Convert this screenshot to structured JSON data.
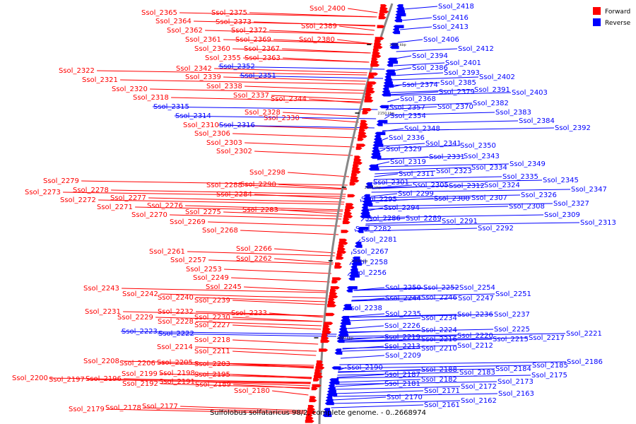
{
  "title": "Sulfolobus solfataricus 98/2, complete genome. - 0..2668974",
  "colors": {
    "forward": "#ff0000",
    "reverse": "#0000ff",
    "axis": "#888888",
    "background": "#ffffff"
  },
  "legend": [
    {
      "label": "Forward",
      "color": "#ff0000"
    },
    {
      "label": "Reverse",
      "color": "#0000ff"
    }
  ],
  "ticks": [
    "2200 kbp",
    "2150 kbp",
    "2100 kbp",
    "2050 kbp",
    "2000 kbp"
  ],
  "forward_labels": [
    "Ssol_2400",
    "Ssol_2389",
    "Ssol_2380",
    "Ssol_2375",
    "Ssol_2373",
    "Ssol_2372",
    "Ssol_2369",
    "Ssol_2367",
    "Ssol_2365",
    "Ssol_2364",
    "Ssol_2363",
    "Ssol_2362",
    "Ssol_2361",
    "Ssol_2360",
    "Ssol_2355",
    "Ssol_2344",
    "Ssol_2342",
    "Ssol_2339",
    "Ssol_2338",
    "Ssol_2337",
    "Ssol_2330",
    "Ssol_2328",
    "Ssol_2322",
    "Ssol_2321",
    "Ssol_2320",
    "Ssol_2318",
    "Ssol_2310",
    "Ssol_2306",
    "Ssol_2303",
    "Ssol_2302",
    "Ssol_2298",
    "Ssol_2290",
    "Ssol_2288",
    "Ssol_2284",
    "Ssol_2283",
    "Ssol_2279",
    "Ssol_2278",
    "Ssol_2277",
    "Ssol_2276",
    "Ssol_2275",
    "Ssol_2273",
    "Ssol_2272",
    "Ssol_2271",
    "Ssol_2270",
    "Ssol_2269",
    "Ssol_2268",
    "Ssol_2266",
    "Ssol_2262",
    "Ssol_2261",
    "Ssol_2257",
    "Ssol_2253",
    "Ssol_2249",
    "Ssol_2245",
    "Ssol_2243",
    "Ssol_2242",
    "Ssol_2240",
    "Ssol_2239",
    "Ssol_2233",
    "Ssol_2232",
    "Ssol_2231",
    "Ssol_2230",
    "Ssol_2229",
    "Ssol_2228",
    "Ssol_2227",
    "Ssol_2218",
    "Ssol_2214",
    "Ssol_2211",
    "Ssol_2208",
    "Ssol_2206",
    "Ssol_2205",
    "Ssol_2203",
    "Ssol_2200",
    "Ssol_2199",
    "Ssol_2198",
    "Ssol_2197",
    "Ssol_2196",
    "Ssol_2195",
    "Ssol_2192",
    "Ssol_2191",
    "Ssol_2189",
    "Ssol_2180",
    "Ssol_2179",
    "Ssol_2178",
    "Ssol_2177"
  ],
  "reverse_labels": [
    "Ssol_2418",
    "Ssol_2416",
    "Ssol_2413",
    "Ssol_2412",
    "Ssol_2406",
    "Ssol_2403",
    "Ssol_2402",
    "Ssol_2401",
    "Ssol_2394",
    "Ssol_2393",
    "Ssol_2392",
    "Ssol_2391",
    "Ssol_2386",
    "Ssol_2385",
    "Ssol_2384",
    "Ssol_2383",
    "Ssol_2382",
    "Ssol_2379",
    "Ssol_2374",
    "Ssol_2370",
    "Ssol_2368",
    "Ssol_2357",
    "Ssol_2354",
    "Ssol_2352",
    "Ssol_2351",
    "Ssol_2350",
    "Ssol_2349",
    "Ssol_2348",
    "Ssol_2347",
    "Ssol_2345",
    "Ssol_2343",
    "Ssol_2341",
    "Ssol_2336",
    "Ssol_2335",
    "Ssol_2334",
    "Ssol_2331",
    "Ssol_2329",
    "Ssol_2327",
    "Ssol_2326",
    "Ssol_2324",
    "Ssol_2323",
    "Ssol_2319",
    "Ssol_2316",
    "Ssol_2315",
    "Ssol_2314",
    "Ssol_2313",
    "Ssol_2312",
    "Ssol_2311",
    "Ssol_2309",
    "Ssol_2308",
    "Ssol_2307",
    "Ssol_2305",
    "Ssol_2301",
    "Ssol_2300",
    "Ssol_2299",
    "Ssol_2295",
    "Ssol_2294",
    "Ssol_2292",
    "Ssol_2291",
    "Ssol_2289",
    "Ssol_2286",
    "Ssol_2282",
    "Ssol_2281",
    "Ssol_2267",
    "Ssol_2258",
    "Ssol_2256",
    "Ssol_2254",
    "Ssol_2252",
    "Ssol_2251",
    "Ssol_2250",
    "Ssol_2247",
    "Ssol_2246",
    "Ssol_2244",
    "Ssol_2238",
    "Ssol_2237",
    "Ssol_2236",
    "Ssol_2235",
    "Ssol_2234",
    "Ssol_2226",
    "Ssol_2225",
    "Ssol_2224",
    "Ssol_2223",
    "Ssol_2222",
    "Ssol_2221",
    "Ssol_2220",
    "Ssol_2219",
    "Ssol_2217",
    "Ssol_2216",
    "Ssol_2215",
    "Ssol_2213",
    "Ssol_2212",
    "Ssol_2210",
    "Ssol_2209",
    "Ssol_2190",
    "Ssol_2188",
    "Ssol_2187",
    "Ssol_2186",
    "Ssol_2185",
    "Ssol_2184",
    "Ssol_2183",
    "Ssol_2182",
    "Ssol_2181",
    "Ssol_2175",
    "Ssol_2173",
    "Ssol_2172",
    "Ssol_2171",
    "Ssol_2170",
    "Ssol_2163",
    "Ssol_2162",
    "Ssol_2161"
  ]
}
